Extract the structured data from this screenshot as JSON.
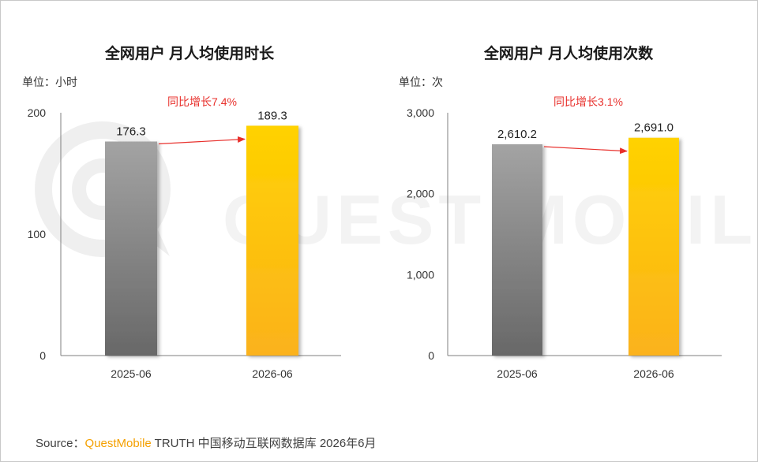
{
  "source": {
    "prefix": "Source：",
    "brand": "QuestMobile",
    "rest": "TRUTH 中国移动互联网数据库 2026年6月"
  },
  "colors": {
    "bar_prev_top": "#a3a3a3",
    "bar_prev_bottom": "#686868",
    "bar_curr_top": "#ffd200",
    "bar_curr_bottom": "#fbb21c",
    "growth": "#e8302c",
    "brand": "#f4a000"
  },
  "chart_data": [
    {
      "type": "bar",
      "title": "全网用户 月人均使用时长",
      "unit": "单位：小时",
      "categories": [
        "2025-06",
        "2026-06"
      ],
      "values": [
        176.3,
        189.3
      ],
      "value_labels": [
        "176.3",
        "189.3"
      ],
      "ylim": [
        0,
        200
      ],
      "yticks": [
        0,
        100,
        200
      ],
      "ytick_labels": [
        "0",
        "100",
        "200"
      ],
      "growth_label": "同比增长7.4%",
      "grid": false
    },
    {
      "type": "bar",
      "title": "全网用户 月人均使用次数",
      "unit": "单位：次",
      "categories": [
        "2025-06",
        "2026-06"
      ],
      "values": [
        2610.2,
        2691.0
      ],
      "value_labels": [
        "2,610.2",
        "2,691.0"
      ],
      "ylim": [
        0,
        3000
      ],
      "yticks": [
        0,
        1000,
        2000,
        3000
      ],
      "ytick_labels": [
        "0",
        "1,000",
        "2,000",
        "3,000"
      ],
      "growth_label": "同比增长3.1%",
      "grid": false
    }
  ]
}
